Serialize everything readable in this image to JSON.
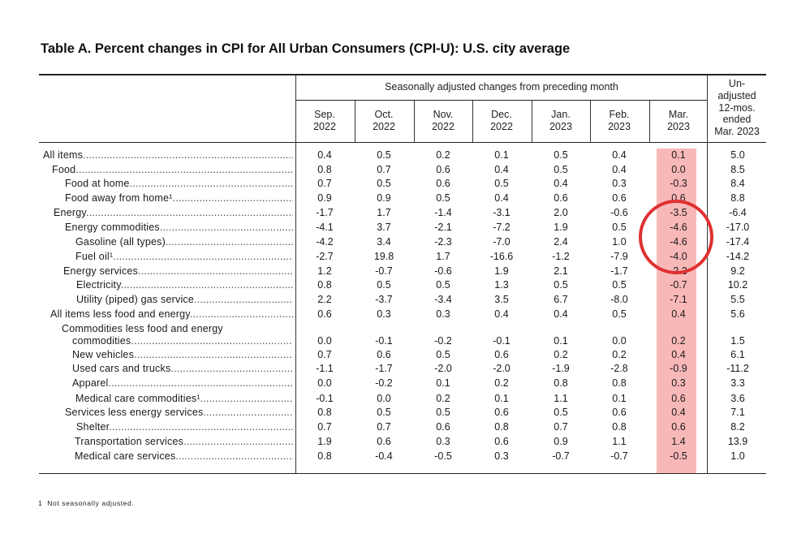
{
  "title": "Table A. Percent changes in CPI for All Urban Consumers (CPI-U): U.S. city average",
  "header": {
    "group_label": "Seasonally adjusted changes from preceding month",
    "columns": [
      {
        "line1": "Sep.",
        "line2": "2022"
      },
      {
        "line1": "Oct.",
        "line2": "2022"
      },
      {
        "line1": "Nov.",
        "line2": "2022"
      },
      {
        "line1": "Dec.",
        "line2": "2022"
      },
      {
        "line1": "Jan.",
        "line2": "2023"
      },
      {
        "line1": "Feb.",
        "line2": "2023"
      },
      {
        "line1": "Mar.",
        "line2": "2023"
      }
    ],
    "unadjusted_lines": [
      "Un-",
      "adjusted",
      "12-mos.",
      "ended",
      "Mar. 2023"
    ]
  },
  "highlight": {
    "column": "Mar. 2023",
    "color": "#f9b8b8"
  },
  "annotation": {
    "shape": "circle",
    "color": "#e03131",
    "rows": [
      "Energy",
      "Energy commodities",
      "Gasoline (all types)",
      "Fuel oil"
    ]
  },
  "rows": [
    {
      "label": "All items",
      "values": [
        "0.4",
        "0.5",
        "0.2",
        "0.1",
        "0.5",
        "0.4",
        "0.1",
        "5.0"
      ]
    },
    {
      "label": "Food",
      "values": [
        "0.8",
        "0.7",
        "0.6",
        "0.4",
        "0.5",
        "0.4",
        "0.0",
        "8.5"
      ]
    },
    {
      "label": "Food at home",
      "values": [
        "0.7",
        "0.5",
        "0.6",
        "0.5",
        "0.4",
        "0.3",
        "-0.3",
        "8.4"
      ]
    },
    {
      "label": "Food away from home¹",
      "values": [
        "0.9",
        "0.9",
        "0.5",
        "0.4",
        "0.6",
        "0.6",
        "0.6",
        "8.8"
      ]
    },
    {
      "label": "Energy",
      "values": [
        "-1.7",
        "1.7",
        "-1.4",
        "-3.1",
        "2.0",
        "-0.6",
        "-3.5",
        "-6.4"
      ]
    },
    {
      "label": "Energy commodities",
      "values": [
        "-4.1",
        "3.7",
        "-2.1",
        "-7.2",
        "1.9",
        "0.5",
        "-4.6",
        "-17.0"
      ]
    },
    {
      "label": "Gasoline (all types)",
      "values": [
        "-4.2",
        "3.4",
        "-2.3",
        "-7.0",
        "2.4",
        "1.0",
        "-4.6",
        "-17.4"
      ]
    },
    {
      "label": "Fuel oil¹",
      "values": [
        "-2.7",
        "19.8",
        "1.7",
        "-16.6",
        "-1.2",
        "-7.9",
        "-4.0",
        "-14.2"
      ]
    },
    {
      "label": "Energy services",
      "values": [
        "1.2",
        "-0.7",
        "-0.6",
        "1.9",
        "2.1",
        "-1.7",
        "-2.3",
        "9.2"
      ]
    },
    {
      "label": "Electricity",
      "values": [
        "0.8",
        "0.5",
        "0.5",
        "1.3",
        "0.5",
        "0.5",
        "-0.7",
        "10.2"
      ]
    },
    {
      "label": "Utility (piped) gas service",
      "values": [
        "2.2",
        "-3.7",
        "-3.4",
        "3.5",
        "6.7",
        "-8.0",
        "-7.1",
        "5.5"
      ]
    },
    {
      "label": "All items less food and energy",
      "values": [
        "0.6",
        "0.3",
        "0.3",
        "0.4",
        "0.4",
        "0.5",
        "0.4",
        "5.6"
      ]
    },
    {
      "label": "Commodities less food and energy",
      "values": []
    },
    {
      "label": "commodities",
      "values": [
        "0.0",
        "-0.1",
        "-0.2",
        "-0.1",
        "0.1",
        "0.0",
        "0.2",
        "1.5"
      ]
    },
    {
      "label": "New vehicles",
      "values": [
        "0.7",
        "0.6",
        "0.5",
        "0.6",
        "0.2",
        "0.2",
        "0.4",
        "6.1"
      ]
    },
    {
      "label": "Used cars and trucks",
      "values": [
        "-1.1",
        "-1.7",
        "-2.0",
        "-2.0",
        "-1.9",
        "-2.8",
        "-0.9",
        "-11.2"
      ]
    },
    {
      "label": "Apparel",
      "values": [
        "0.0",
        "-0.2",
        "0.1",
        "0.2",
        "0.8",
        "0.8",
        "0.3",
        "3.3"
      ]
    },
    {
      "label": "Medical care commodities¹",
      "values": [
        "-0.1",
        "0.0",
        "0.2",
        "0.1",
        "1.1",
        "0.1",
        "0.6",
        "3.6"
      ]
    },
    {
      "label": "Services less energy services",
      "values": [
        "0.8",
        "0.5",
        "0.5",
        "0.6",
        "0.5",
        "0.6",
        "0.4",
        "7.1"
      ]
    },
    {
      "label": "Shelter",
      "values": [
        "0.7",
        "0.7",
        "0.6",
        "0.8",
        "0.7",
        "0.8",
        "0.6",
        "8.2"
      ]
    },
    {
      "label": "Transportation services",
      "values": [
        "1.9",
        "0.6",
        "0.3",
        "0.6",
        "0.9",
        "1.1",
        "1.4",
        "13.9"
      ]
    },
    {
      "label": "Medical care services",
      "values": [
        "0.8",
        "-0.4",
        "-0.5",
        "0.3",
        "-0.7",
        "-0.7",
        "-0.5",
        "1.0"
      ]
    }
  ],
  "footnote": {
    "marker": "1",
    "text": "Not seasonally adjusted."
  }
}
